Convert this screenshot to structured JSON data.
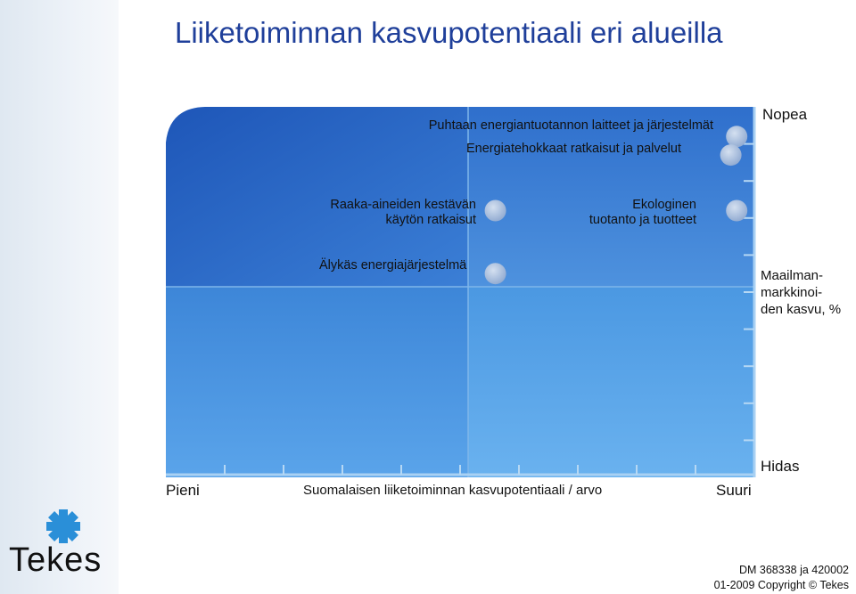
{
  "title": "Liiketoiminnan kasvupotentiaali eri alueilla",
  "chart_data": {
    "type": "scatter",
    "title": "Liiketoiminnan kasvupotentiaali eri alueilla",
    "xlabel": "Suomalaisen liiketoiminnan kasvupotentiaali / arvo",
    "ylabel": "Maailman-\nmarkkinoi-\nden kasvu, %",
    "x_axis_ends": {
      "low": "Pieni",
      "high": "Suuri"
    },
    "y_axis_ends": {
      "low": "Hidas",
      "high": "Nopea"
    },
    "xlim": [
      0,
      10
    ],
    "ylim": [
      0,
      10
    ],
    "grid": false,
    "points": [
      {
        "label": "Puhtaan energiantuotannon laitteet ja järjestelmät",
        "x": 9.7,
        "y": 9.2
      },
      {
        "label": "Energiatehokkaat ratkaisut ja palvelut",
        "x": 9.6,
        "y": 8.7
      },
      {
        "label": "Raaka-aineiden kestävän käytön ratkaisut",
        "x": 5.6,
        "y": 7.2
      },
      {
        "label": "Ekologinen tuotanto ja tuotteet",
        "x": 9.7,
        "y": 7.2
      },
      {
        "label": "Älykäs energiajärjestelmä",
        "x": 5.6,
        "y": 5.5
      }
    ]
  },
  "point_labels": {
    "p1": "Puhtaan energiantuotannon laitteet ja järjestelmät",
    "p2": "Energiatehokkaat ratkaisut ja palvelut",
    "p3_line1": "Raaka-aineiden kestävän",
    "p3_line2": "käytön ratkaisut",
    "p4_line1": "Ekologinen",
    "p4_line2": "tuotanto ja tuotteet",
    "p5": "Älykäs energiajärjestelmä"
  },
  "axis": {
    "x_low": "Pieni",
    "x_high": "Suuri",
    "x_title": "Suomalaisen liiketoiminnan kasvupotentiaali / arvo",
    "y_high": "Nopea",
    "y_low": "Hidas",
    "y_title": "Maailman-\nmarkkinoi-\nden kasvu, %"
  },
  "logo": {
    "text": "Tekes",
    "icon": "tekes-snowflake-logo"
  },
  "footer": {
    "line1": "DM 368338 ja 420002",
    "line2": "01-2009 Copyright © Tekes"
  },
  "colors": {
    "title": "#1f3f9a",
    "quadrant_top_left": "#2a62c4",
    "quadrant_bottom_right": "#5fa8e8",
    "point": "#9fb7d9"
  }
}
